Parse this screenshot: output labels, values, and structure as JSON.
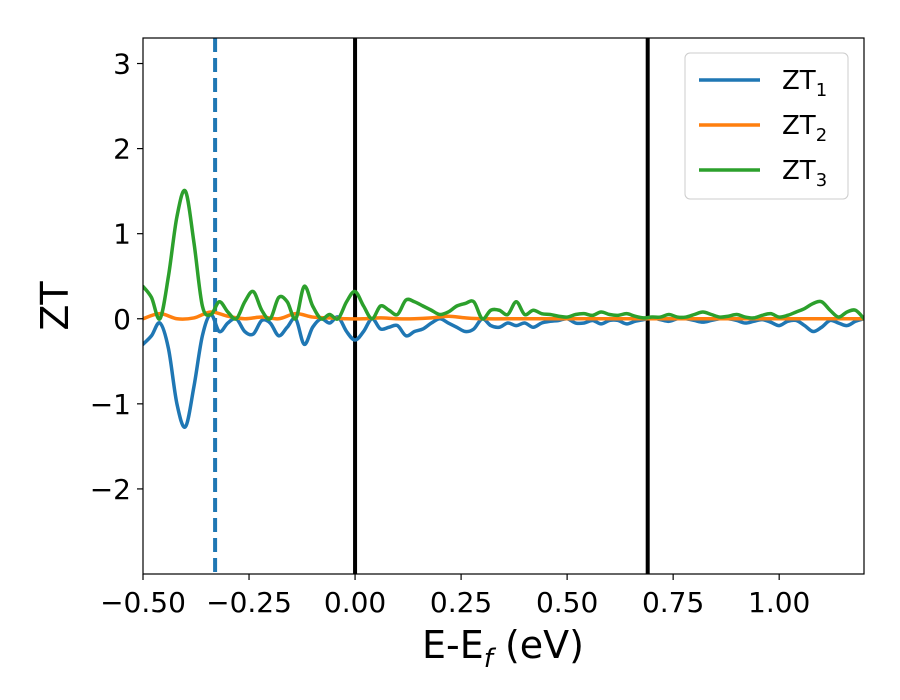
{
  "chart_data": {
    "type": "line",
    "title": "",
    "xlabel": "E-E",
    "xlabel_subscript": "f",
    "xlabel_unit": " (eV)",
    "ylabel": "ZT",
    "xlim": [
      -0.5,
      1.2
    ],
    "ylim": [
      -3.0,
      3.3
    ],
    "x_ticks": [
      -0.5,
      -0.25,
      0.0,
      0.25,
      0.5,
      0.75,
      1.0
    ],
    "x_tick_labels": [
      "−0.50",
      "−0.25",
      "0.00",
      "0.25",
      "0.50",
      "0.75",
      "1.00"
    ],
    "y_ticks": [
      -2,
      -1,
      0,
      1,
      2,
      3
    ],
    "y_tick_labels": [
      "−2",
      "−1",
      "0",
      "1",
      "2",
      "3"
    ],
    "grid": false,
    "legend_position": "top-right",
    "vlines": [
      {
        "x": -0.33,
        "style": "dashed",
        "color": "#1f77b4"
      },
      {
        "x": 0.0,
        "style": "solid",
        "color": "#000000"
      },
      {
        "x": 0.69,
        "style": "solid",
        "color": "#000000"
      }
    ],
    "series": [
      {
        "name": "ZT",
        "name_subscript": "1",
        "color": "#1f77b4",
        "x": [
          -0.5,
          -0.48,
          -0.46,
          -0.44,
          -0.42,
          -0.4,
          -0.38,
          -0.36,
          -0.34,
          -0.32,
          -0.3,
          -0.28,
          -0.26,
          -0.24,
          -0.22,
          -0.2,
          -0.18,
          -0.16,
          -0.14,
          -0.12,
          -0.1,
          -0.08,
          -0.06,
          -0.04,
          -0.02,
          0.0,
          0.02,
          0.04,
          0.06,
          0.08,
          0.1,
          0.12,
          0.14,
          0.16,
          0.18,
          0.2,
          0.22,
          0.24,
          0.26,
          0.28,
          0.3,
          0.32,
          0.34,
          0.36,
          0.38,
          0.4,
          0.42,
          0.44,
          0.46,
          0.48,
          0.5,
          0.52,
          0.54,
          0.56,
          0.58,
          0.6,
          0.62,
          0.64,
          0.66,
          0.68,
          0.7,
          0.72,
          0.74,
          0.76,
          0.78,
          0.8,
          0.82,
          0.84,
          0.86,
          0.88,
          0.9,
          0.92,
          0.94,
          0.96,
          0.98,
          1.0,
          1.02,
          1.04,
          1.06,
          1.08,
          1.1,
          1.12,
          1.14,
          1.16,
          1.18,
          1.2
        ],
        "y": [
          -0.3,
          -0.2,
          -0.05,
          -0.35,
          -1.0,
          -1.27,
          -0.8,
          -0.2,
          0.05,
          -0.15,
          -0.05,
          0.0,
          -0.15,
          -0.18,
          -0.02,
          -0.05,
          -0.2,
          -0.1,
          0.0,
          -0.3,
          -0.1,
          0.0,
          -0.05,
          0.02,
          -0.15,
          -0.25,
          -0.15,
          0.0,
          -0.12,
          -0.1,
          -0.08,
          -0.2,
          -0.15,
          -0.12,
          -0.05,
          0.0,
          -0.05,
          -0.1,
          -0.15,
          -0.12,
          0.0,
          -0.08,
          -0.1,
          -0.05,
          -0.08,
          -0.05,
          -0.1,
          -0.05,
          -0.03,
          -0.02,
          0.0,
          -0.05,
          -0.05,
          -0.02,
          -0.06,
          -0.02,
          -0.02,
          -0.06,
          -0.03,
          -0.01,
          0.01,
          -0.01,
          -0.03,
          0.0,
          0.0,
          -0.02,
          -0.04,
          -0.02,
          0.0,
          0.0,
          -0.02,
          -0.05,
          -0.03,
          -0.01,
          -0.04,
          -0.08,
          -0.03,
          -0.02,
          -0.08,
          -0.15,
          -0.1,
          -0.02,
          -0.05,
          -0.08,
          -0.03,
          0.0
        ]
      },
      {
        "name": "ZT",
        "name_subscript": "2",
        "color": "#ff7f0e",
        "x": [
          -0.5,
          -0.46,
          -0.42,
          -0.38,
          -0.34,
          -0.3,
          -0.26,
          -0.22,
          -0.18,
          -0.14,
          -0.1,
          -0.06,
          -0.02,
          0.02,
          0.06,
          0.1,
          0.14,
          0.18,
          0.22,
          0.26,
          0.3,
          0.4,
          0.5,
          0.6,
          0.7,
          0.8,
          0.9,
          1.0,
          1.1,
          1.2
        ],
        "y": [
          0.0,
          0.06,
          0.0,
          0.01,
          0.08,
          0.03,
          0.0,
          0.02,
          0.0,
          0.06,
          0.02,
          0.01,
          0.0,
          0.0,
          0.01,
          0.0,
          0.0,
          0.01,
          0.03,
          0.01,
          0.0,
          0.0,
          0.0,
          0.0,
          0.0,
          0.0,
          0.0,
          0.0,
          0.0,
          0.0
        ]
      },
      {
        "name": "ZT",
        "name_subscript": "3",
        "color": "#2ca02c",
        "x": [
          -0.5,
          -0.48,
          -0.46,
          -0.44,
          -0.42,
          -0.4,
          -0.38,
          -0.36,
          -0.34,
          -0.32,
          -0.3,
          -0.28,
          -0.26,
          -0.24,
          -0.22,
          -0.2,
          -0.18,
          -0.16,
          -0.14,
          -0.12,
          -0.1,
          -0.08,
          -0.06,
          -0.04,
          -0.02,
          0.0,
          0.02,
          0.04,
          0.06,
          0.08,
          0.1,
          0.12,
          0.14,
          0.16,
          0.18,
          0.2,
          0.22,
          0.24,
          0.26,
          0.28,
          0.3,
          0.32,
          0.34,
          0.36,
          0.38,
          0.4,
          0.42,
          0.44,
          0.46,
          0.48,
          0.5,
          0.52,
          0.54,
          0.56,
          0.58,
          0.6,
          0.62,
          0.64,
          0.66,
          0.68,
          0.7,
          0.72,
          0.74,
          0.76,
          0.78,
          0.8,
          0.82,
          0.84,
          0.86,
          0.88,
          0.9,
          0.92,
          0.94,
          0.96,
          0.98,
          1.0,
          1.02,
          1.04,
          1.06,
          1.08,
          1.1,
          1.12,
          1.14,
          1.16,
          1.18,
          1.2
        ],
        "y": [
          0.38,
          0.25,
          0.0,
          0.5,
          1.2,
          1.5,
          0.9,
          0.15,
          0.05,
          0.2,
          0.08,
          0.0,
          0.2,
          0.32,
          0.1,
          0.0,
          0.25,
          0.2,
          0.0,
          0.38,
          0.15,
          0.0,
          0.05,
          0.0,
          0.2,
          0.32,
          0.15,
          0.0,
          0.15,
          0.1,
          0.05,
          0.22,
          0.2,
          0.15,
          0.1,
          0.05,
          0.08,
          0.15,
          0.18,
          0.2,
          0.0,
          0.1,
          0.1,
          0.05,
          0.2,
          0.05,
          0.1,
          0.06,
          0.05,
          0.03,
          0.02,
          0.05,
          0.06,
          0.04,
          0.08,
          0.05,
          0.04,
          0.06,
          0.03,
          0.01,
          0.02,
          0.02,
          0.05,
          0.02,
          0.02,
          0.05,
          0.08,
          0.05,
          0.02,
          0.03,
          0.05,
          0.02,
          0.01,
          0.04,
          0.06,
          0.02,
          0.04,
          0.08,
          0.12,
          0.18,
          0.2,
          0.1,
          0.02,
          0.08,
          0.1,
          0.0
        ]
      }
    ]
  }
}
